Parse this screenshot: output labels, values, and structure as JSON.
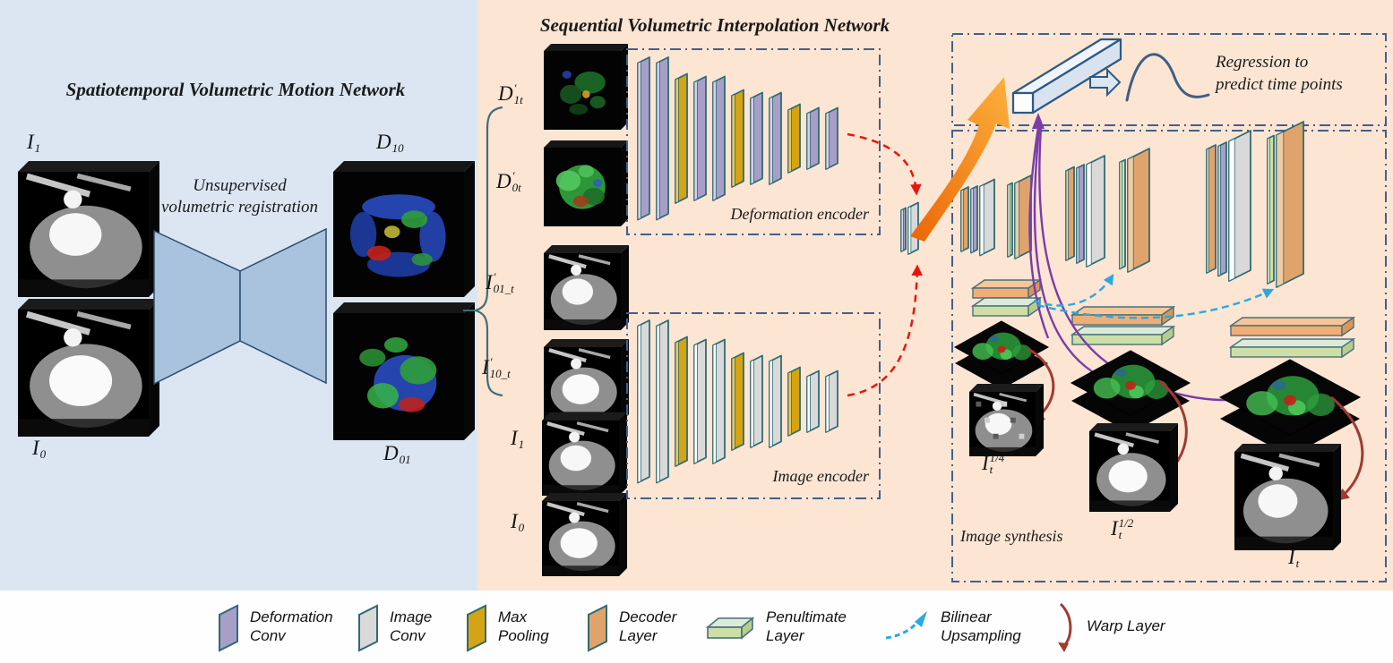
{
  "figure": {
    "left_panel": {
      "title": "Spatiotemporal Volumetric Motion Network",
      "registration_note_line1": "Unsupervised",
      "registration_note_line2": "volumetric registration",
      "input_top": {
        "base": "I",
        "sup": "",
        "sub": "1"
      },
      "input_bottom": {
        "base": "I",
        "sup": "",
        "sub": "0"
      },
      "output_top": {
        "base": "D",
        "sup": "",
        "sub": "10"
      },
      "output_bottom": {
        "base": "D",
        "sup": "",
        "sub": "01"
      }
    },
    "interp_panel": {
      "title": "Sequential Volumetric Interpolation Network",
      "inputs": [
        {
          "base": "D",
          "sup": "′",
          "sub": "1t"
        },
        {
          "base": "D",
          "sup": "′",
          "sub": "0t"
        },
        {
          "base": "I",
          "sup": "′",
          "sub": "01_t"
        },
        {
          "base": "I",
          "sup": "′",
          "sub": "10_t"
        },
        {
          "base": "I",
          "sup": "",
          "sub": "1"
        },
        {
          "base": "I",
          "sup": "",
          "sub": "0"
        }
      ],
      "deformation_encoder_label": "Deformation encoder",
      "image_encoder_label": "Image encoder",
      "regression_note_line1": "Regression to",
      "regression_note_line2": "predict time points",
      "image_synthesis_label": "Image synthesis",
      "outputs": [
        {
          "base": "I",
          "sup": "1/4",
          "sub": "t"
        },
        {
          "base": "I",
          "sup": "1/2",
          "sub": "t"
        },
        {
          "base": "I",
          "sup": "",
          "sub": "t"
        }
      ]
    },
    "legend": {
      "items": [
        {
          "icon": "deformation-conv",
          "line1": "Deformation",
          "line2": "Conv"
        },
        {
          "icon": "image-conv",
          "line1": "Image",
          "line2": "Conv"
        },
        {
          "icon": "max-pooling",
          "line1": "Max",
          "line2": "Pooling"
        },
        {
          "icon": "decoder-layer",
          "line1": "Decoder",
          "line2": "Layer"
        },
        {
          "icon": "penultimate-layer",
          "line1": "Penultimate",
          "line2": "Layer"
        },
        {
          "icon": "bilinear-upsampling",
          "line1": "Bilinear",
          "line2": "Upsampling"
        },
        {
          "icon": "warp-layer",
          "line1": "Warp Layer",
          "line2": ""
        }
      ]
    },
    "colors": {
      "motion_panel_bg": "#dbe6f2",
      "interp_panel_bg": "#fce5d3",
      "deformation_conv": "#a79fc8",
      "image_conv": "#d9d9d9",
      "max_pooling": "#d4a414",
      "decoder_layer": "#e0a36b",
      "penultimate_layer": "#cddfa6",
      "bilinear_upsampling": "#2aa9e1",
      "warp_layer": "#a03a32",
      "red_feature_arrow": "#e8150d",
      "purple_regression_arrow": "#7b3ca8",
      "dash_box_border": "#44608a"
    }
  }
}
